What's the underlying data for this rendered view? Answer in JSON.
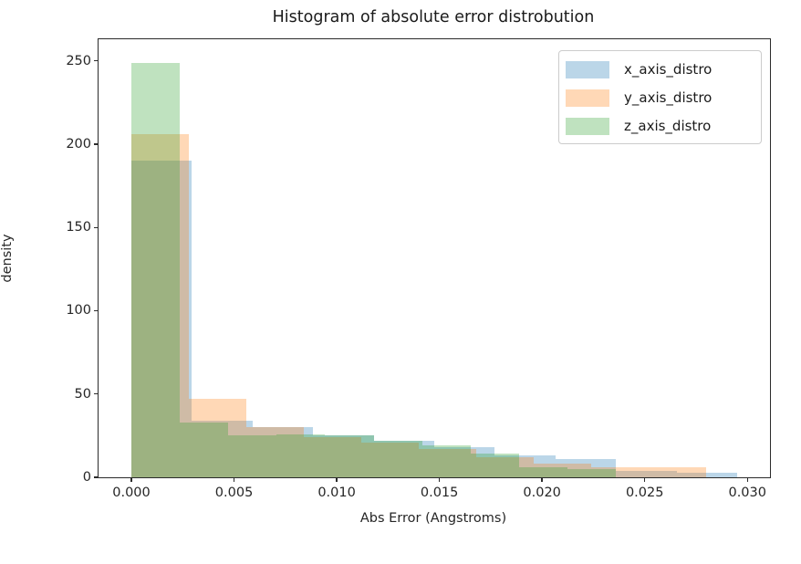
{
  "title": "Histogram of absolute error distrobution",
  "axes": {
    "xlabel": "Abs Error (Angstroms)",
    "ylabel": "density",
    "x_ticks": [
      {
        "value": 0.0,
        "label": "0.000"
      },
      {
        "value": 0.005,
        "label": "0.005"
      },
      {
        "value": 0.01,
        "label": "0.010"
      },
      {
        "value": 0.015,
        "label": "0.015"
      },
      {
        "value": 0.02,
        "label": "0.020"
      },
      {
        "value": 0.025,
        "label": "0.025"
      },
      {
        "value": 0.03,
        "label": "0.030"
      }
    ],
    "y_ticks": [
      {
        "value": 0,
        "label": "0"
      },
      {
        "value": 50,
        "label": "50"
      },
      {
        "value": 100,
        "label": "100"
      },
      {
        "value": 150,
        "label": "150"
      },
      {
        "value": 200,
        "label": "200"
      },
      {
        "value": 250,
        "label": "250"
      }
    ]
  },
  "legend": {
    "position": "upper-right",
    "items": [
      {
        "label": "x_axis_distro",
        "color": "#1f77b4"
      },
      {
        "label": "y_axis_distro",
        "color": "#ff7f0e"
      },
      {
        "label": "z_axis_distro",
        "color": "#2ca02c"
      }
    ]
  },
  "chart_data": {
    "type": "bar",
    "subtype": "overlapping-histogram",
    "title": "Histogram of absolute error distrobution",
    "xlabel": "Abs Error (Angstroms)",
    "ylabel": "density",
    "xlim": [
      -0.0016,
      0.0311
    ],
    "ylim": [
      0,
      263
    ],
    "grid": false,
    "bar_alpha": 0.3,
    "draw_order": [
      "x_axis_distro",
      "y_axis_distro",
      "z_axis_distro"
    ],
    "series": [
      {
        "name": "x_axis_distro",
        "color": "#1f77b4",
        "bin_start": 0.0,
        "bin_width": 0.00295,
        "counts": [
          190,
          34,
          30,
          25,
          22,
          18,
          13,
          11,
          4,
          3
        ]
      },
      {
        "name": "y_axis_distro",
        "color": "#ff7f0e",
        "bin_start": 0.0,
        "bin_width": 0.0028,
        "counts": [
          206,
          47,
          30,
          24,
          21,
          17,
          12,
          8,
          6,
          6
        ]
      },
      {
        "name": "z_axis_distro",
        "color": "#2ca02c",
        "bin_start": 0.0,
        "bin_width": 0.00236,
        "counts": [
          249,
          33,
          25,
          26,
          25,
          22,
          19,
          14,
          6,
          5
        ]
      }
    ]
  }
}
